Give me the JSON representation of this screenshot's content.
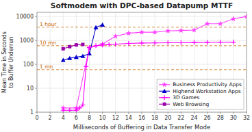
{
  "chart_data": {
    "type": "line",
    "title": "Softmodem with DPC-based Datapump MTTF",
    "x_label": "Milliseconds of Buffering in Data Transfer Mode",
    "y_label": "Mean Time in Seconds\nto Buffer Underrun",
    "log": "y",
    "grid": true,
    "legend": "lower right",
    "xlim": [
      0,
      32
    ],
    "ylim": [
      1,
      15000
    ],
    "xticks": [
      0,
      2,
      4,
      6,
      8,
      10,
      12,
      14,
      16,
      18,
      20,
      22,
      24,
      26,
      28,
      30,
      32
    ],
    "yticks": [
      1,
      10,
      100,
      1000,
      10000
    ],
    "annotations": [
      {
        "y": 3600,
        "text": "1 hour",
        "color": "#cc6600"
      },
      {
        "y": 600,
        "text": "10 mn",
        "color": "#cc6600"
      },
      {
        "y": 60,
        "text": "1 mn",
        "color": "#cc6600"
      }
    ],
    "series": [
      {
        "name": "Business Productivity Apps",
        "color": "#ff44ff",
        "marker": "star",
        "x": [
          4,
          6,
          8,
          10,
          12,
          14,
          16,
          18,
          20,
          22,
          24,
          26,
          28,
          30,
          32
        ],
        "values": [
          1.5,
          1.5,
          500,
          700,
          1500,
          2000,
          2200,
          2200,
          2500,
          2600,
          2700,
          5000,
          5000,
          8000,
          10000
        ]
      },
      {
        "name": "Highend Workstation Apps",
        "color": "#0000cc",
        "marker": "triangle",
        "x": [
          4,
          5,
          6,
          7,
          8,
          9,
          10
        ],
        "values": [
          150,
          180,
          200,
          220,
          280,
          3500,
          4500
        ]
      },
      {
        "name": "3D Games",
        "color": "#ff00ff",
        "marker": "plus",
        "x": [
          4,
          5,
          6,
          6.5,
          7,
          7.5,
          8,
          9,
          10,
          11,
          12,
          14,
          16,
          18,
          20,
          22,
          24,
          26,
          28,
          30
        ],
        "values": [
          1.2,
          1.2,
          1.2,
          1.5,
          2.0,
          80,
          500,
          600,
          650,
          680,
          700,
          750,
          780,
          790,
          800,
          800,
          820,
          830,
          840,
          850
        ]
      },
      {
        "name": "Web Browsing",
        "color": "#9900aa",
        "marker": "square",
        "x": [
          4,
          5,
          6,
          7
        ],
        "values": [
          450,
          550,
          650,
          680
        ]
      }
    ]
  }
}
